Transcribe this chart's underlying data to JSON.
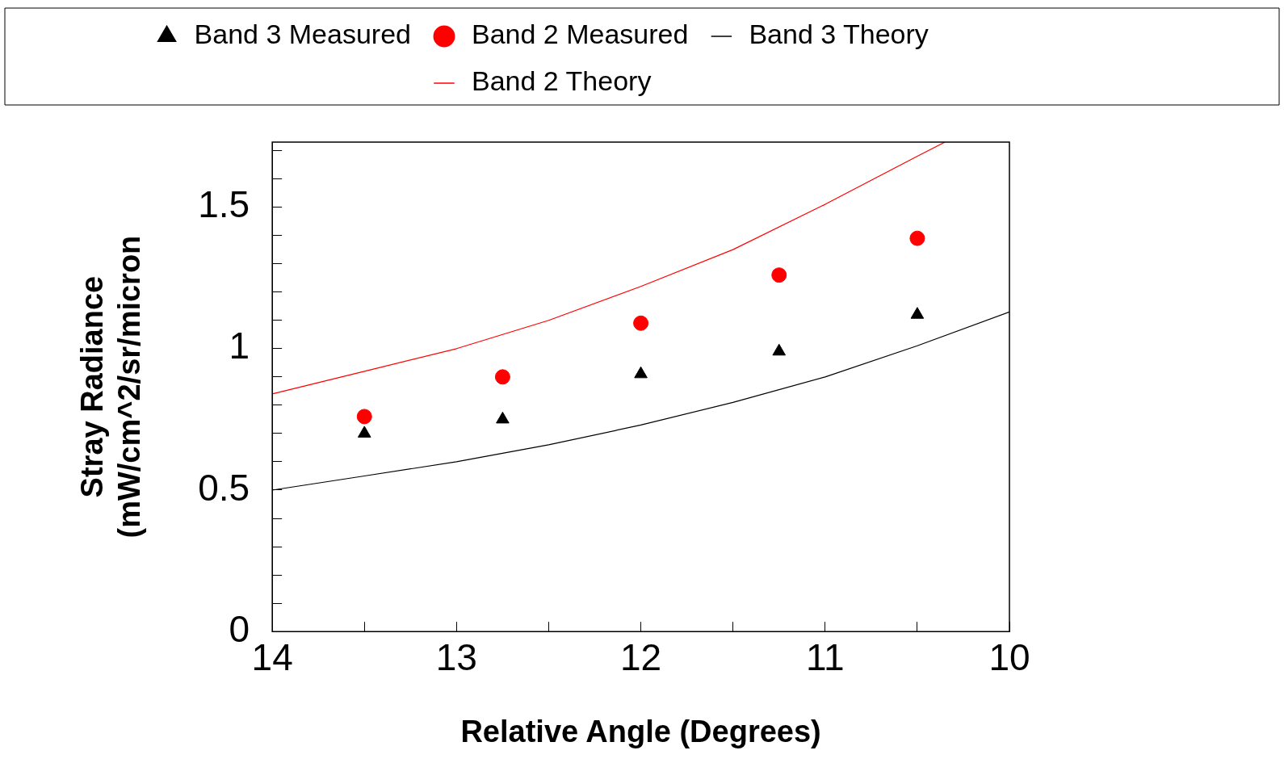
{
  "chart_data": {
    "type": "scatter",
    "xlabel": "Relative Angle (Degrees)",
    "ylabel": "Stray Radiance\n(mW/cm^2/sr/micron",
    "xlim": [
      14,
      10
    ],
    "ylim": [
      0,
      1.73
    ],
    "xticks": [
      14,
      {
        "value": 13.5,
        "label": null
      },
      13,
      {
        "value": 12.5,
        "label": null
      },
      12,
      {
        "value": 11.5,
        "label": null
      },
      11,
      {
        "value": 10.5,
        "label": null
      },
      10
    ],
    "yticks": [
      0,
      {
        "value": 0.1,
        "label": null
      },
      {
        "value": 0.2,
        "label": null
      },
      {
        "value": 0.3,
        "label": null
      },
      {
        "value": 0.4,
        "label": null
      },
      0.5,
      {
        "value": 0.6,
        "label": null
      },
      {
        "value": 0.7,
        "label": null
      },
      {
        "value": 0.8,
        "label": null
      },
      {
        "value": 0.9,
        "label": null
      },
      1,
      {
        "value": 1.1,
        "label": null
      },
      {
        "value": 1.2,
        "label": null
      },
      {
        "value": 1.3,
        "label": null
      },
      {
        "value": 1.4,
        "label": null
      },
      1.5,
      {
        "value": 1.6,
        "label": null
      },
      {
        "value": 1.7,
        "label": null
      }
    ],
    "grid": false,
    "legend": "top",
    "series": [
      {
        "name": "Band 3 Measured",
        "type": "scatter",
        "marker": "triangle",
        "color": "#000000",
        "x": [
          13.5,
          12.75,
          12,
          11.25,
          10.5
        ],
        "values": [
          0.7,
          0.75,
          0.91,
          0.99,
          1.12
        ]
      },
      {
        "name": "Band 2 Measured",
        "type": "scatter",
        "marker": "circle",
        "color": "#ff0000",
        "x": [
          13.5,
          12.75,
          12,
          11.25,
          10.5
        ],
        "values": [
          0.76,
          0.9,
          1.09,
          1.26,
          1.39
        ]
      },
      {
        "name": "Band 3 Theory",
        "type": "line",
        "marker": "none",
        "color": "#000000",
        "x": [
          14,
          13.5,
          13,
          12.5,
          12,
          11.5,
          11,
          10.5,
          10
        ],
        "values": [
          0.5,
          0.55,
          0.6,
          0.66,
          0.73,
          0.81,
          0.9,
          1.01,
          1.13
        ]
      },
      {
        "name": "Band 2 Theory",
        "type": "line",
        "marker": "none",
        "color": "#ff0000",
        "x": [
          14,
          13.5,
          13,
          12.5,
          12,
          11.5,
          11,
          10.5,
          10.35
        ],
        "values": [
          0.84,
          0.92,
          1.0,
          1.1,
          1.22,
          1.35,
          1.51,
          1.68,
          1.73
        ]
      }
    ]
  }
}
